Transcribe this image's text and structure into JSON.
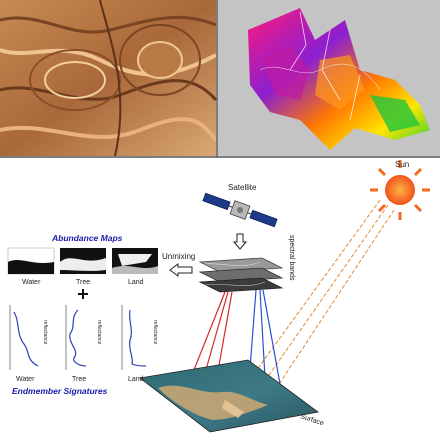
{
  "labels": {
    "abundance_title": "Abundance Maps",
    "endmember_title": "Endmember Signatures",
    "unmixing": "Unmixing",
    "satellite": "Satellite",
    "sun": "Sun",
    "surface": "Surface",
    "spectral_bands": "spectral bands",
    "abundance_items": [
      "Water",
      "Tree",
      "Land"
    ],
    "endmember_items": [
      "Water",
      "Tree",
      "Land"
    ],
    "plot_axis": "reflectance"
  },
  "colors": {
    "title_blue": "#1a1aa8",
    "sun_orange": "#f26b1d",
    "ray_orange": "#e8892e",
    "beam_red": "#d62828",
    "beam_blue": "#2a4fd6",
    "curve_blue": "#2b3fb0"
  },
  "icons": [
    "satellite-icon",
    "sun-icon",
    "down-arrow-icon",
    "left-arrow-icon",
    "plus-icon"
  ]
}
